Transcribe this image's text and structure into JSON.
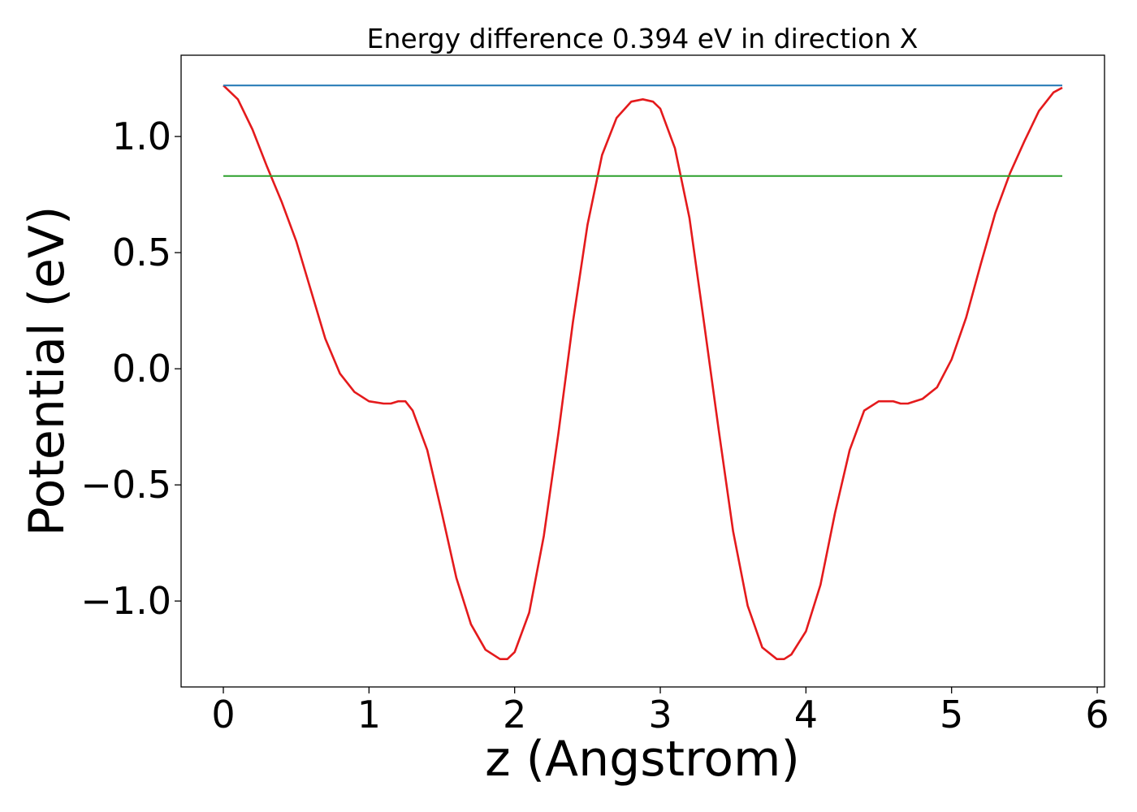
{
  "chart_data": {
    "type": "line",
    "title": "Energy difference 0.394 eV in direction X",
    "xlabel": "z (Angstrom)",
    "ylabel": "Potential (eV)",
    "xlim": [
      -0.29,
      6.05
    ],
    "ylim": [
      -1.37,
      1.35
    ],
    "xticks": [
      0,
      1,
      2,
      3,
      4,
      5,
      6
    ],
    "xtick_labels": [
      "0",
      "1",
      "2",
      "3",
      "4",
      "5",
      "6"
    ],
    "yticks": [
      1.0,
      0.5,
      0.0,
      -0.5,
      -1.0
    ],
    "ytick_labels": [
      "1.0",
      "0.5",
      "0.0",
      "−0.5",
      "−1.0"
    ],
    "grid": false,
    "legend": "none",
    "series": [
      {
        "color": "#e41a1c",
        "x": [
          0,
          0.1,
          0.2,
          0.3,
          0.4,
          0.5,
          0.6,
          0.7,
          0.8,
          0.9,
          1.0,
          1.1,
          1.15,
          1.2,
          1.25,
          1.3,
          1.4,
          1.5,
          1.6,
          1.7,
          1.8,
          1.9,
          1.95,
          2.0,
          2.1,
          2.2,
          2.3,
          2.4,
          2.5,
          2.6,
          2.7,
          2.8,
          2.88,
          2.95,
          3.0,
          3.1,
          3.2,
          3.3,
          3.4,
          3.5,
          3.6,
          3.7,
          3.8,
          3.85,
          3.9,
          4.0,
          4.1,
          4.2,
          4.3,
          4.4,
          4.5,
          4.55,
          4.6,
          4.65,
          4.7,
          4.8,
          4.9,
          5.0,
          5.1,
          5.2,
          5.3,
          5.4,
          5.5,
          5.6,
          5.7,
          5.76
        ],
        "y": [
          1.22,
          1.16,
          1.03,
          0.87,
          0.72,
          0.55,
          0.34,
          0.13,
          -0.02,
          -0.1,
          -0.14,
          -0.15,
          -0.15,
          -0.14,
          -0.14,
          -0.18,
          -0.35,
          -0.62,
          -0.9,
          -1.1,
          -1.21,
          -1.25,
          -1.25,
          -1.22,
          -1.05,
          -0.72,
          -0.28,
          0.2,
          0.62,
          0.92,
          1.08,
          1.15,
          1.16,
          1.15,
          1.12,
          0.95,
          0.65,
          0.2,
          -0.26,
          -0.7,
          -1.02,
          -1.2,
          -1.25,
          -1.25,
          -1.23,
          -1.13,
          -0.93,
          -0.62,
          -0.35,
          -0.18,
          -0.14,
          -0.14,
          -0.14,
          -0.15,
          -0.15,
          -0.13,
          -0.08,
          0.04,
          0.22,
          0.45,
          0.67,
          0.84,
          0.98,
          1.11,
          1.19,
          1.21
        ]
      },
      {
        "color": "#1f77b4",
        "x": [
          0,
          5.76
        ],
        "y": [
          1.22,
          1.22
        ]
      },
      {
        "color": "#2ca02c",
        "x": [
          0,
          5.76
        ],
        "y": [
          0.83,
          0.83
        ]
      }
    ]
  }
}
